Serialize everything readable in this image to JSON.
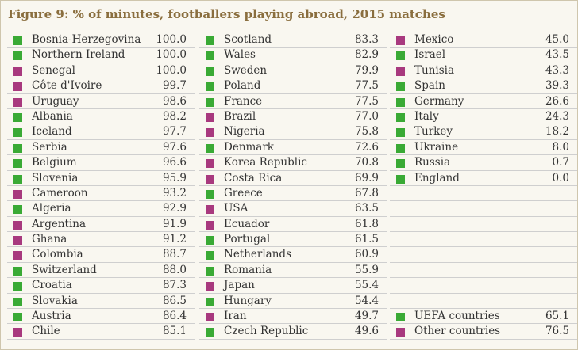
{
  "title": "Figure 9: % of minutes, footballers playing abroad, 2015 matches",
  "colors": {
    "uefa": "#3aaa35",
    "other": "#a8397e"
  },
  "chart_data": {
    "type": "table",
    "title": "Figure 9: % of minutes, footballers playing abroad, 2015 matches",
    "legend": [
      {
        "label": "UEFA countries",
        "group": "uefa",
        "value": "65.1"
      },
      {
        "label": "Other countries",
        "group": "other",
        "value": "76.5"
      }
    ],
    "rows": [
      {
        "name": "Bosnia-Herzegovina",
        "value": "100.0",
        "group": "uefa"
      },
      {
        "name": "Northern Ireland",
        "value": "100.0",
        "group": "uefa"
      },
      {
        "name": "Senegal",
        "value": "100.0",
        "group": "other"
      },
      {
        "name": "Côte d'Ivoire",
        "value": "99.7",
        "group": "other"
      },
      {
        "name": "Uruguay",
        "value": "98.6",
        "group": "other"
      },
      {
        "name": "Albania",
        "value": "98.2",
        "group": "uefa"
      },
      {
        "name": "Iceland",
        "value": "97.7",
        "group": "uefa"
      },
      {
        "name": "Serbia",
        "value": "97.6",
        "group": "uefa"
      },
      {
        "name": "Belgium",
        "value": "96.6",
        "group": "uefa"
      },
      {
        "name": "Slovenia",
        "value": "95.9",
        "group": "uefa"
      },
      {
        "name": "Cameroon",
        "value": "93.2",
        "group": "other"
      },
      {
        "name": "Algeria",
        "value": "92.9",
        "group": "uefa"
      },
      {
        "name": "Argentina",
        "value": "91.9",
        "group": "other"
      },
      {
        "name": "Ghana",
        "value": "91.2",
        "group": "other"
      },
      {
        "name": "Colombia",
        "value": "88.7",
        "group": "other"
      },
      {
        "name": "Switzerland",
        "value": "88.0",
        "group": "uefa"
      },
      {
        "name": "Croatia",
        "value": "87.3",
        "group": "uefa"
      },
      {
        "name": "Slovakia",
        "value": "86.5",
        "group": "uefa"
      },
      {
        "name": "Austria",
        "value": "86.4",
        "group": "uefa"
      },
      {
        "name": "Chile",
        "value": "85.1",
        "group": "other"
      },
      {
        "name": "Scotland",
        "value": "83.3",
        "group": "uefa"
      },
      {
        "name": "Wales",
        "value": "82.9",
        "group": "uefa"
      },
      {
        "name": "Sweden",
        "value": "79.9",
        "group": "uefa"
      },
      {
        "name": "Poland",
        "value": "77.5",
        "group": "uefa"
      },
      {
        "name": "France",
        "value": "77.5",
        "group": "uefa"
      },
      {
        "name": "Brazil",
        "value": "77.0",
        "group": "other"
      },
      {
        "name": "Nigeria",
        "value": "75.8",
        "group": "other"
      },
      {
        "name": "Denmark",
        "value": "72.6",
        "group": "uefa"
      },
      {
        "name": "Korea Republic",
        "value": "70.8",
        "group": "other"
      },
      {
        "name": "Costa Rica",
        "value": "69.9",
        "group": "other"
      },
      {
        "name": "Greece",
        "value": "67.8",
        "group": "uefa"
      },
      {
        "name": "USA",
        "value": "63.5",
        "group": "other"
      },
      {
        "name": "Ecuador",
        "value": "61.8",
        "group": "other"
      },
      {
        "name": "Portugal",
        "value": "61.5",
        "group": "uefa"
      },
      {
        "name": "Netherlands",
        "value": "60.9",
        "group": "uefa"
      },
      {
        "name": "Romania",
        "value": "55.9",
        "group": "uefa"
      },
      {
        "name": "Japan",
        "value": "55.4",
        "group": "other"
      },
      {
        "name": "Hungary",
        "value": "54.4",
        "group": "uefa"
      },
      {
        "name": "Iran",
        "value": "49.7",
        "group": "other"
      },
      {
        "name": "Czech Republic",
        "value": "49.6",
        "group": "uefa"
      },
      {
        "name": "Mexico",
        "value": "45.0",
        "group": "other"
      },
      {
        "name": "Israel",
        "value": "43.5",
        "group": "uefa"
      },
      {
        "name": "Tunisia",
        "value": "43.3",
        "group": "other"
      },
      {
        "name": "Spain",
        "value": "39.3",
        "group": "uefa"
      },
      {
        "name": "Germany",
        "value": "26.6",
        "group": "uefa"
      },
      {
        "name": "Italy",
        "value": "24.3",
        "group": "uefa"
      },
      {
        "name": "Turkey",
        "value": "18.2",
        "group": "uefa"
      },
      {
        "name": "Ukraine",
        "value": "8.0",
        "group": "uefa"
      },
      {
        "name": "Russia",
        "value": "0.7",
        "group": "uefa"
      },
      {
        "name": "England",
        "value": "0.0",
        "group": "uefa"
      }
    ]
  }
}
